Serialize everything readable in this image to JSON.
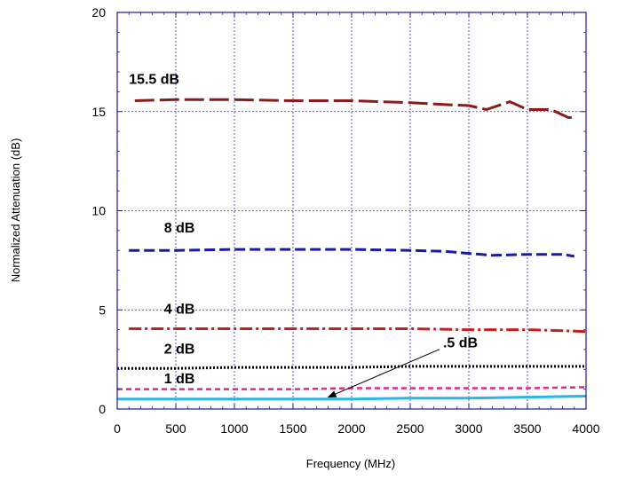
{
  "chart_data": {
    "type": "line",
    "xlabel": "Frequency (MHz)",
    "ylabel": "Normalized Attenuation (dB)",
    "xlim": [
      0,
      4000
    ],
    "ylim": [
      0,
      20
    ],
    "xticks": [
      "0",
      "500",
      "1000",
      "1500",
      "2000",
      "2500",
      "3000",
      "3500",
      "4000"
    ],
    "yticks": [
      "0",
      "5",
      "10",
      "15",
      "20"
    ],
    "grid": true,
    "series": [
      {
        "name": "15.5 dB",
        "color": "#8b1a1a",
        "dash": "long-dash",
        "x": [
          150,
          500,
          1000,
          1500,
          2000,
          2500,
          2800,
          3000,
          3150,
          3350,
          3500,
          3700,
          3850,
          3900
        ],
        "y": [
          15.55,
          15.6,
          15.6,
          15.55,
          15.55,
          15.45,
          15.35,
          15.3,
          15.1,
          15.5,
          15.1,
          15.1,
          14.7,
          14.7
        ]
      },
      {
        "name": "8 dB",
        "color": "#1a1aaa",
        "dash": "dash",
        "x": [
          100,
          500,
          1000,
          1500,
          2000,
          2500,
          2800,
          3000,
          3200,
          3500,
          3800,
          3900
        ],
        "y": [
          8.0,
          8.0,
          8.05,
          8.05,
          8.05,
          8.0,
          7.95,
          7.85,
          7.75,
          7.8,
          7.8,
          7.7
        ]
      },
      {
        "name": "4 dB",
        "color": "#c81e1e",
        "dash": "dash-dot",
        "x": [
          100,
          500,
          1000,
          1500,
          2000,
          2500,
          3000,
          3500,
          3800,
          4000
        ],
        "y": [
          4.05,
          4.05,
          4.05,
          4.05,
          4.05,
          4.05,
          4.0,
          4.0,
          3.95,
          3.9
        ]
      },
      {
        "name": "2 dB",
        "color": "#000000",
        "dash": "dot",
        "x": [
          0,
          500,
          1000,
          1500,
          2000,
          2500,
          3000,
          3500,
          4000
        ],
        "y": [
          2.05,
          2.05,
          2.1,
          2.1,
          2.1,
          2.15,
          2.15,
          2.15,
          2.15
        ]
      },
      {
        "name": "1 dB",
        "color": "#e0288c",
        "dash": "short-dash",
        "x": [
          0,
          500,
          1000,
          1500,
          2000,
          2500,
          3000,
          3500,
          4000
        ],
        "y": [
          1.0,
          1.0,
          1.0,
          1.0,
          1.05,
          1.05,
          1.05,
          1.05,
          1.1
        ]
      },
      {
        "name": ".5 dB",
        "color": "#29b6e6",
        "dash": "solid",
        "x": [
          0,
          500,
          1000,
          1500,
          2000,
          2500,
          3000,
          3500,
          4000
        ],
        "y": [
          0.5,
          0.5,
          0.5,
          0.5,
          0.5,
          0.55,
          0.55,
          0.6,
          0.65
        ]
      }
    ],
    "annotations": [
      {
        "text": "15.5 dB",
        "x": 100,
        "y": 16.4
      },
      {
        "text": "8 dB",
        "x": 400,
        "y": 8.9
      },
      {
        "text": "4 dB",
        "x": 400,
        "y": 4.8
      },
      {
        "text": "2 dB",
        "x": 400,
        "y": 2.8
      },
      {
        "text": "1 dB",
        "x": 400,
        "y": 1.3
      },
      {
        "text": ".5 dB",
        "x": 2780,
        "y": 3.1,
        "arrow_to": [
          1800,
          0.6
        ]
      }
    ]
  }
}
